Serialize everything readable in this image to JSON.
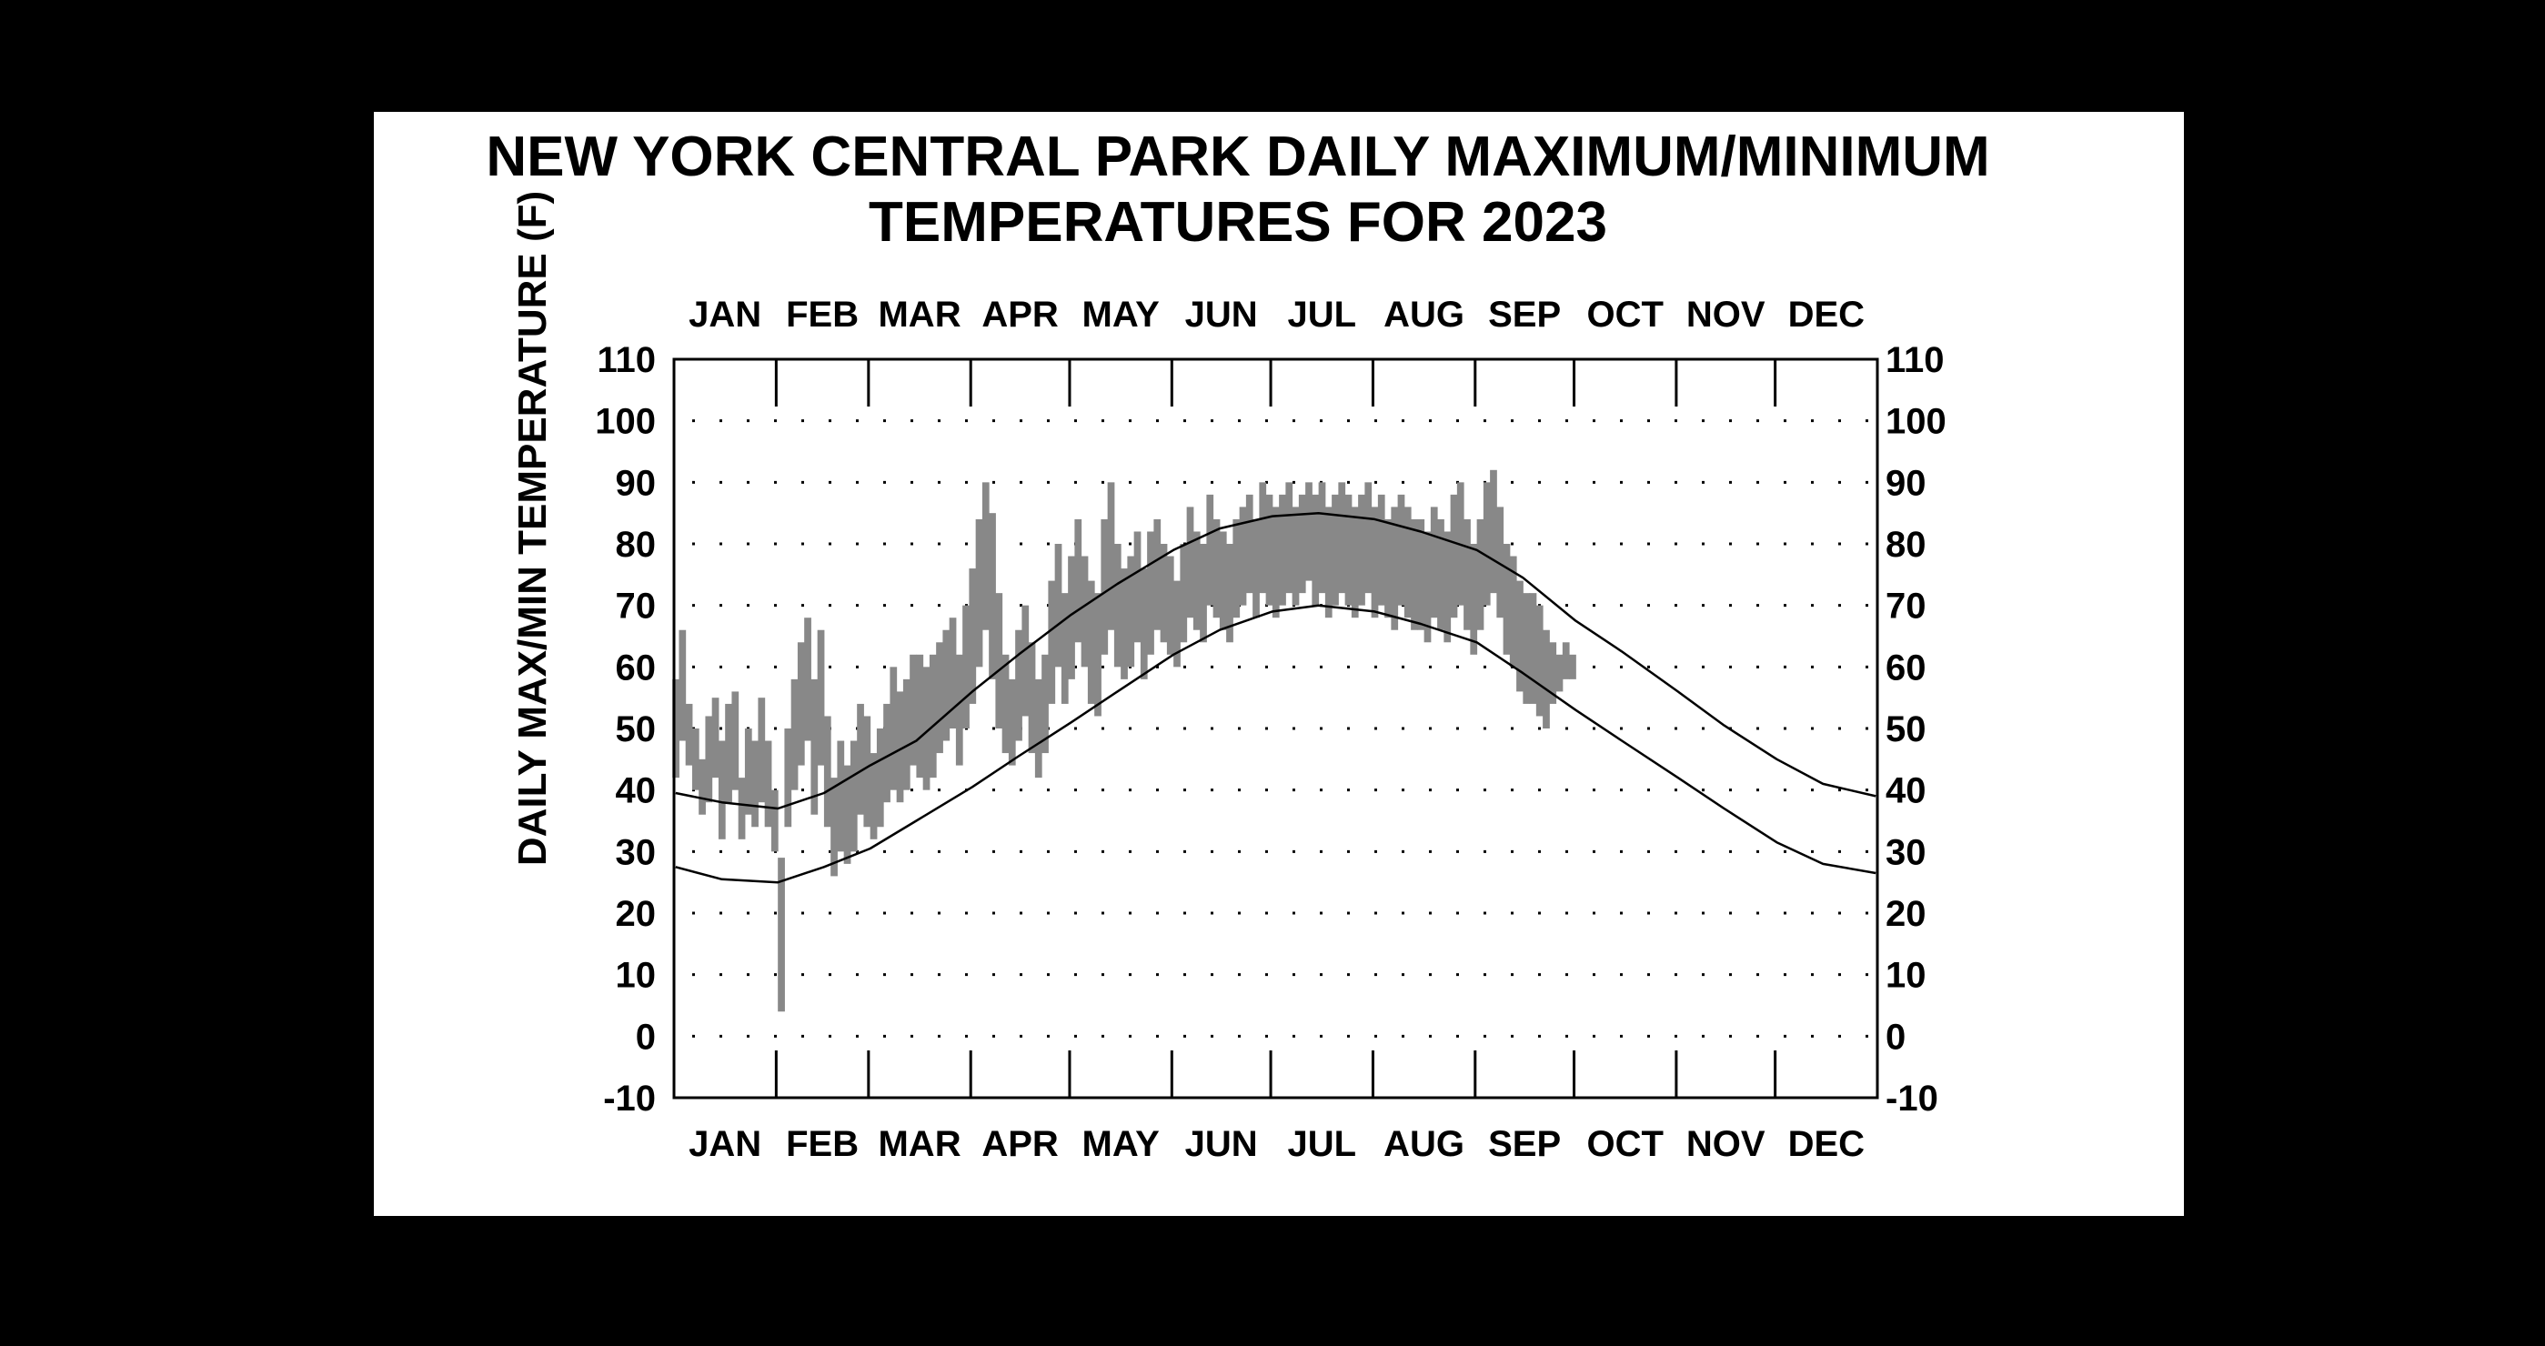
{
  "chart_data": {
    "type": "line",
    "title": "NEW YORK CENTRAL PARK DAILY MAXIMUM/MINIMUM",
    "subtitle": "TEMPERATURES FOR 2023",
    "xlabel": "",
    "ylabel": "DAILY MAX/MIN TEMPERATURE (F)",
    "ylim": [
      -10,
      110
    ],
    "yticks": [
      110,
      100,
      90,
      80,
      70,
      60,
      50,
      40,
      30,
      20,
      10,
      0,
      -10
    ],
    "months": [
      "JAN",
      "FEB",
      "MAR",
      "APR",
      "MAY",
      "JUN",
      "JUL",
      "AUG",
      "SEP",
      "OCT",
      "NOV",
      "DEC"
    ],
    "grid": "dotted",
    "x_unit": "day of year",
    "normals": {
      "color": "#000000",
      "normal_high": {
        "x": [
          1,
          15,
          32,
          46,
          60,
          74,
          91,
          105,
          121,
          135,
          152,
          166,
          182,
          196,
          213,
          227,
          244,
          258,
          274,
          288,
          305,
          319,
          335,
          349,
          365
        ],
        "values": [
          39.5,
          38,
          37,
          39.5,
          44,
          48,
          56,
          62,
          68.5,
          73.5,
          79,
          82.5,
          84.5,
          85,
          84,
          82,
          79,
          74.5,
          67.5,
          62.5,
          56,
          50.5,
          45,
          41,
          39
        ]
      },
      "normal_low": {
        "x": [
          1,
          15,
          32,
          46,
          60,
          74,
          91,
          105,
          121,
          135,
          152,
          166,
          182,
          196,
          213,
          227,
          244,
          258,
          274,
          288,
          305,
          319,
          335,
          349,
          365
        ],
        "values": [
          27.5,
          25.5,
          25,
          27.5,
          30.5,
          35,
          40.5,
          45.5,
          51,
          56,
          62,
          66,
          69,
          70,
          69,
          67,
          64,
          59,
          53,
          48,
          42,
          37,
          31.5,
          28,
          26.5
        ]
      }
    },
    "observed": {
      "color": "#888888",
      "x": [
        1,
        3,
        5,
        7,
        9,
        11,
        13,
        15,
        17,
        19,
        21,
        23,
        25,
        27,
        29,
        31,
        33,
        35,
        37,
        39,
        41,
        43,
        45,
        47,
        49,
        51,
        53,
        55,
        57,
        59,
        61,
        63,
        65,
        67,
        69,
        71,
        73,
        75,
        77,
        79,
        81,
        83,
        85,
        87,
        89,
        91,
        93,
        95,
        97,
        99,
        101,
        103,
        105,
        107,
        109,
        111,
        113,
        115,
        117,
        119,
        121,
        123,
        125,
        127,
        129,
        131,
        133,
        135,
        137,
        139,
        141,
        143,
        145,
        147,
        149,
        151,
        153,
        155,
        157,
        159,
        161,
        163,
        165,
        167,
        169,
        171,
        173,
        175,
        177,
        179,
        181,
        183,
        185,
        187,
        189,
        191,
        193,
        195,
        197,
        199,
        201,
        203,
        205,
        207,
        209,
        211,
        213,
        215,
        217,
        219,
        221,
        223,
        225,
        227,
        229,
        231,
        233,
        235,
        237,
        239,
        241,
        243,
        245,
        247,
        249,
        251,
        253,
        255,
        257,
        259,
        261,
        263,
        265,
        267,
        269,
        271,
        273
      ],
      "max": [
        58,
        66,
        54,
        50,
        45,
        52,
        55,
        48,
        54,
        56,
        42,
        50,
        48,
        55,
        48,
        40,
        29,
        50,
        58,
        64,
        68,
        58,
        66,
        52,
        42,
        48,
        44,
        48,
        54,
        52,
        46,
        50,
        54,
        60,
        56,
        58,
        62,
        62,
        60,
        62,
        64,
        66,
        68,
        62,
        70,
        76,
        84,
        90,
        85,
        72,
        62,
        58,
        66,
        70,
        64,
        58,
        62,
        74,
        80,
        72,
        78,
        84,
        78,
        74,
        72,
        84,
        90,
        80,
        76,
        78,
        82,
        76,
        82,
        84,
        80,
        78,
        74,
        80,
        86,
        82,
        80,
        88,
        84,
        82,
        80,
        84,
        86,
        88,
        84,
        90,
        88,
        86,
        88,
        90,
        86,
        88,
        90,
        88,
        90,
        86,
        88,
        90,
        88,
        86,
        88,
        90,
        86,
        88,
        84,
        86,
        88,
        86,
        84,
        84,
        82,
        86,
        84,
        82,
        88,
        90,
        84,
        80,
        84,
        90,
        92,
        86,
        80,
        78,
        74,
        72,
        72,
        70,
        66,
        64,
        62,
        64,
        62
      ],
      "min": [
        42,
        48,
        44,
        40,
        36,
        38,
        42,
        32,
        38,
        40,
        32,
        36,
        34,
        38,
        34,
        30,
        4,
        34,
        40,
        44,
        48,
        36,
        44,
        34,
        26,
        30,
        28,
        30,
        36,
        34,
        32,
        34,
        38,
        40,
        38,
        40,
        44,
        42,
        40,
        42,
        46,
        48,
        50,
        44,
        50,
        54,
        60,
        66,
        58,
        50,
        46,
        44,
        48,
        52,
        46,
        42,
        46,
        54,
        60,
        54,
        58,
        64,
        60,
        54,
        52,
        62,
        66,
        60,
        58,
        60,
        64,
        58,
        62,
        66,
        64,
        62,
        60,
        64,
        68,
        66,
        64,
        70,
        68,
        66,
        64,
        68,
        70,
        72,
        68,
        72,
        70,
        68,
        70,
        72,
        70,
        72,
        74,
        70,
        72,
        68,
        70,
        72,
        70,
        68,
        70,
        72,
        68,
        70,
        68,
        66,
        70,
        68,
        66,
        66,
        64,
        68,
        66,
        64,
        68,
        70,
        66,
        62,
        66,
        70,
        72,
        68,
        62,
        60,
        56,
        54,
        54,
        52,
        50,
        54,
        56,
        58,
        58
      ]
    }
  }
}
